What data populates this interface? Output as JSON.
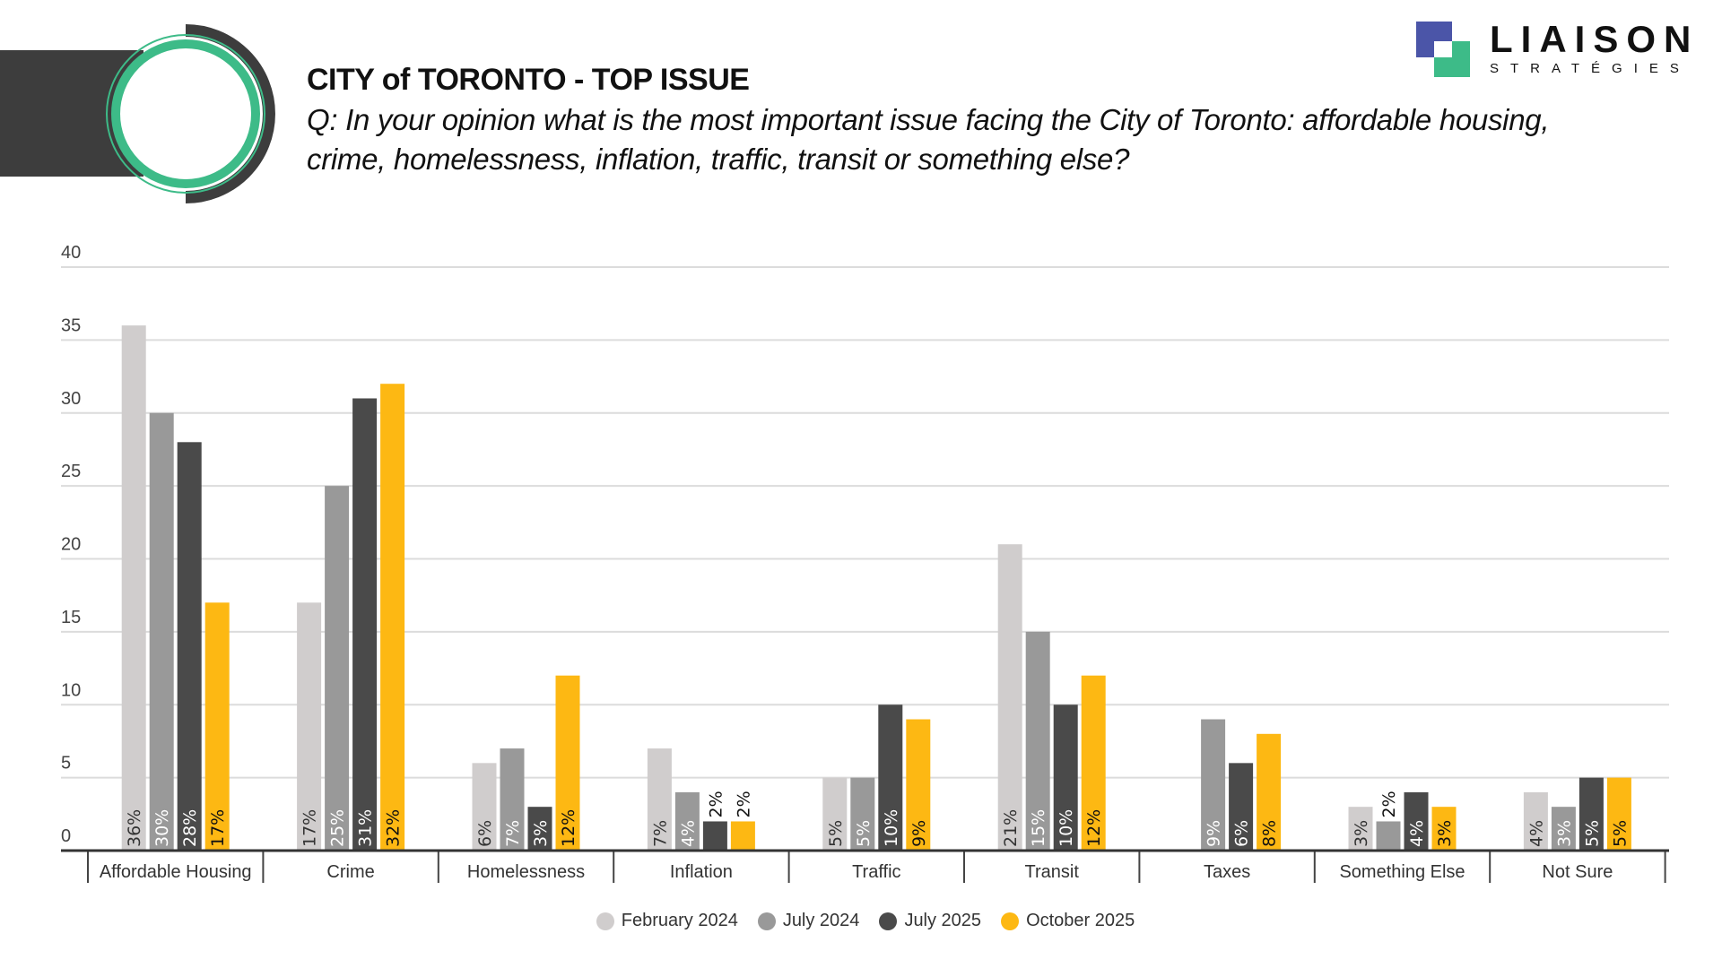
{
  "header": {
    "title": "CITY of TORONTO - TOP ISSUE",
    "question": "Q: In your opinion what is the most important issue facing the City of Toronto: affordable housing, crime, homelessness, inflation, traffic, transit or something else?"
  },
  "logo": {
    "word": "LIAISON",
    "sub": "STRATÉGIES",
    "colors": {
      "blue": "#4b55a8",
      "green": "#3dbb88"
    }
  },
  "chart_data": {
    "type": "bar",
    "title": "CITY of TORONTO - TOP ISSUE",
    "categories": [
      "Affordable Housing",
      "Crime",
      "Homelessness",
      "Inflation",
      "Traffic",
      "Transit",
      "Taxes",
      "Something Else",
      "Not Sure"
    ],
    "series": [
      {
        "name": "February 2024",
        "color": "#d0cdcd",
        "values": [
          36,
          17,
          6,
          7,
          5,
          21,
          null,
          3,
          4
        ]
      },
      {
        "name": "July 2024",
        "color": "#999999",
        "values": [
          30,
          25,
          7,
          4,
          5,
          15,
          9,
          2,
          3
        ]
      },
      {
        "name": "July 2025",
        "color": "#4a4a4a",
        "values": [
          28,
          31,
          3,
          2,
          10,
          10,
          6,
          4,
          5
        ]
      },
      {
        "name": "October 2025",
        "color": "#fdb813",
        "values": [
          17,
          32,
          12,
          2,
          9,
          12,
          8,
          3,
          5
        ]
      }
    ],
    "yticks": [
      0,
      5,
      10,
      15,
      20,
      25,
      30,
      35,
      40
    ],
    "ylim": [
      0,
      40
    ],
    "grid": true,
    "data_label_format": "%",
    "legend_position": "bottom"
  }
}
